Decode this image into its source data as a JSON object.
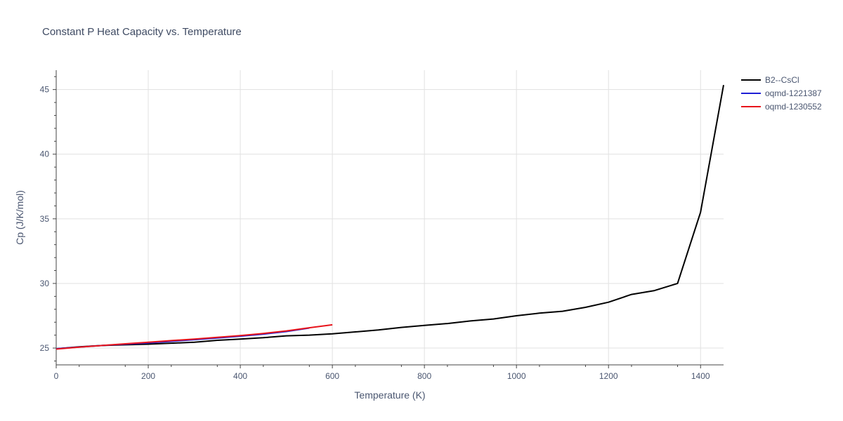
{
  "chart_data": {
    "type": "line",
    "title": "Constant P Heat Capacity vs. Temperature",
    "xlabel": "Temperature (K)",
    "ylabel": "Cp (J/K/mol)",
    "xlim": [
      0,
      1450
    ],
    "ylim": [
      23.7,
      46.5
    ],
    "x_ticks": [
      0,
      200,
      400,
      600,
      800,
      1000,
      1200,
      1400
    ],
    "y_ticks": [
      25,
      30,
      35,
      40,
      45
    ],
    "grid": true,
    "legend_position": "right",
    "series": [
      {
        "name": "B2--CsCl",
        "color": "#000000",
        "x": [
          0,
          50,
          100,
          150,
          200,
          250,
          300,
          350,
          400,
          450,
          500,
          550,
          600,
          650,
          700,
          750,
          800,
          850,
          900,
          950,
          1000,
          1050,
          1100,
          1150,
          1200,
          1250,
          1300,
          1350,
          1400,
          1450
        ],
        "y": [
          24.95,
          25.1,
          25.2,
          25.25,
          25.3,
          25.38,
          25.45,
          25.6,
          25.7,
          25.8,
          25.95,
          26.0,
          26.1,
          26.25,
          26.4,
          26.6,
          26.75,
          26.9,
          27.1,
          27.25,
          27.5,
          27.7,
          27.85,
          28.15,
          28.55,
          29.15,
          29.45,
          30.0,
          35.5,
          45.35
        ]
      },
      {
        "name": "oqmd-1221387",
        "color": "#1f1fd6",
        "x": [
          0,
          50,
          100,
          150,
          200,
          250,
          300,
          350,
          400,
          450,
          500,
          550
        ],
        "y": [
          24.95,
          25.08,
          25.2,
          25.3,
          25.4,
          25.52,
          25.65,
          25.78,
          25.92,
          26.08,
          26.28,
          26.55
        ]
      },
      {
        "name": "oqmd-1230552",
        "color": "#e8141b",
        "x": [
          0,
          50,
          100,
          150,
          200,
          250,
          300,
          350,
          400,
          450,
          500,
          550,
          600
        ],
        "y": [
          24.92,
          25.07,
          25.2,
          25.33,
          25.45,
          25.58,
          25.7,
          25.83,
          25.97,
          26.13,
          26.33,
          26.57,
          26.8
        ]
      }
    ]
  }
}
